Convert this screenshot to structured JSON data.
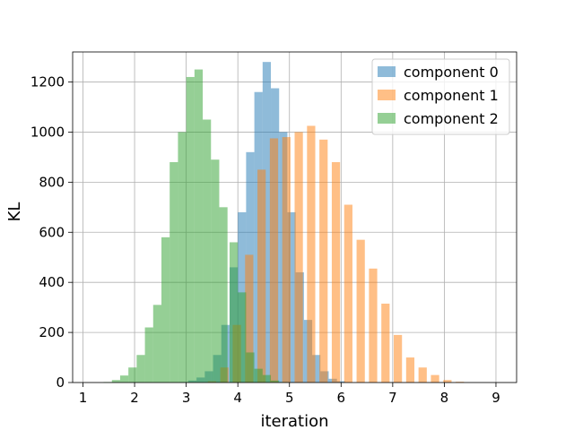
{
  "chart_data": {
    "type": "bar",
    "title": "",
    "xlabel": "iteration",
    "ylabel": "KL",
    "xlim": [
      0.8,
      9.4
    ],
    "ylim": [
      0,
      1320
    ],
    "xticks": [
      1,
      2,
      3,
      4,
      5,
      6,
      7,
      8,
      9
    ],
    "yticks": [
      0,
      200,
      400,
      600,
      800,
      1000,
      1200
    ],
    "grid": true,
    "legend_position": "top-right",
    "bin_width": 0.16,
    "series": [
      {
        "name": "component 0",
        "color": "#1f77b4",
        "bin_starts": [
          2.88,
          3.04,
          3.2,
          3.36,
          3.52,
          3.68,
          3.84,
          4.0,
          4.16,
          4.32,
          4.48,
          4.64,
          4.8,
          4.96,
          5.12,
          5.28,
          5.44,
          5.6,
          5.76,
          5.92
        ],
        "values": [
          2,
          8,
          20,
          45,
          110,
          230,
          460,
          680,
          920,
          1160,
          1280,
          1175,
          1000,
          680,
          440,
          250,
          110,
          45,
          15,
          5
        ]
      },
      {
        "name": "component 1",
        "color": "#ff7f0e",
        "bin_starts": [
          3.42,
          3.66,
          3.9,
          4.14,
          4.38,
          4.62,
          4.86,
          5.1,
          5.34,
          5.58,
          5.82,
          6.06,
          6.3,
          6.54,
          6.78,
          7.02,
          7.26,
          7.5,
          7.74,
          7.98,
          8.22
        ],
        "values": [
          5,
          60,
          230,
          510,
          850,
          975,
          980,
          1000,
          1025,
          970,
          880,
          710,
          570,
          455,
          315,
          190,
          100,
          60,
          30,
          10,
          3
        ]
      },
      {
        "name": "component 2",
        "color": "#2ca02c",
        "bin_starts": [
          1.4,
          1.56,
          1.72,
          1.88,
          2.04,
          2.2,
          2.36,
          2.52,
          2.68,
          2.84,
          3.0,
          3.16,
          3.32,
          3.48,
          3.64,
          3.84,
          4.0,
          4.16,
          4.32,
          4.48,
          4.64,
          4.8
        ],
        "values": [
          2,
          10,
          28,
          60,
          110,
          220,
          310,
          580,
          880,
          1000,
          1220,
          1250,
          1050,
          890,
          700,
          560,
          360,
          120,
          55,
          30,
          8,
          2
        ]
      }
    ]
  }
}
